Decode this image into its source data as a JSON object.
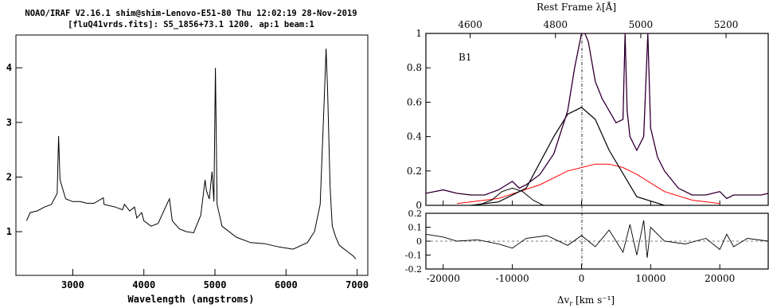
{
  "left_panel": {
    "header_line1": "NOAO/IRAF V2.16.1 shim@shim-Lenovo-E51-80 Thu 12:02:19 28-Nov-2019",
    "header_line2": "[fluQ41vrds.fits]: S5_1856+73.1 1200. ap:1 beam:1",
    "xlabel": "Wavelength (angstroms)"
  },
  "right_panel": {
    "top_axis_label": "Rest Frame λ[Å]",
    "xlabel_main": "Δv",
    "xlabel_sub": "r",
    "xlabel_units": " [km s⁻¹]",
    "sup_label": "⁻¹",
    "panel_label": "B1"
  },
  "colors": {
    "data": "#000000",
    "model": "#b000b0",
    "broad_component": "#ff0000",
    "narrow_lines": "#ffff00",
    "fe_template": "#00cc00",
    "continuum": "#ff9900",
    "gaussian_hb": "#000000"
  },
  "chart_data": [
    {
      "type": "line",
      "title": "",
      "xlabel": "Wavelength (angstroms)",
      "ylabel": "",
      "xlim": [
        2200,
        7150
      ],
      "ylim": [
        0.2,
        4.6
      ],
      "xticks": [
        3000,
        4000,
        5000,
        6000,
        7000
      ],
      "yticks": [
        1,
        2,
        3,
        4
      ],
      "series": [
        {
          "x": [
            2350,
            2400,
            2500,
            2600,
            2700,
            2780,
            2800,
            2820,
            2900,
            3000,
            3100,
            3200,
            3300,
            3430,
            3440,
            3500,
            3600,
            3700,
            3727,
            3800,
            3869,
            3900,
            3970,
            4000,
            4100,
            4200,
            4340,
            4360,
            4400,
            4500,
            4600,
            4700,
            4800,
            4861,
            4880,
            4920,
            4959,
            4985,
            5007,
            5030,
            5100,
            5300,
            5500,
            5700,
            5900,
            6100,
            6300,
            6400,
            6480,
            6540,
            6563,
            6585,
            6620,
            6650,
            6700,
            6750,
            6800,
            6850,
            6900,
            6950,
            6980
          ],
          "y": [
            1.2,
            1.35,
            1.38,
            1.45,
            1.5,
            1.7,
            2.75,
            1.95,
            1.6,
            1.55,
            1.55,
            1.52,
            1.52,
            1.62,
            1.5,
            1.48,
            1.45,
            1.4,
            1.5,
            1.38,
            1.45,
            1.25,
            1.35,
            1.2,
            1.1,
            1.15,
            1.55,
            1.6,
            1.2,
            1.05,
            1.0,
            0.98,
            1.3,
            1.95,
            1.75,
            1.6,
            2.1,
            1.55,
            4.0,
            1.5,
            1.1,
            0.9,
            0.8,
            0.78,
            0.72,
            0.68,
            0.8,
            1.0,
            1.5,
            3.5,
            4.35,
            3.6,
            1.8,
            1.1,
            0.9,
            0.75,
            0.7,
            0.65,
            0.6,
            0.55,
            0.5
          ]
        }
      ]
    },
    {
      "type": "line",
      "title": "",
      "panel_label": "B1",
      "xlabel": "Δvr [km s⁻¹]",
      "top_xlabel": "Rest Frame λ[Å]",
      "xlim": [
        -22500,
        27000
      ],
      "ylim": [
        0,
        1
      ],
      "xticks": [
        -20000,
        -10000,
        0,
        10000,
        20000
      ],
      "top_xticks": [
        4600,
        4800,
        5000,
        5200
      ],
      "yticks": [
        0,
        0.2,
        0.4,
        0.6,
        0.8,
        1
      ],
      "ytick_labels": [
        "0",
        "0.2",
        "0.4",
        "0.6",
        "0.8",
        "1"
      ],
      "series": [
        {
          "role": "data",
          "x": [
            -22500,
            -20000,
            -18000,
            -16000,
            -14000,
            -12000,
            -10000,
            -9000,
            -8000,
            -6000,
            -4000,
            -2000,
            -1000,
            0,
            500,
            1000,
            2000,
            3000,
            4000,
            5000,
            6000,
            6300,
            6600,
            7000,
            8000,
            9000,
            9600,
            10000,
            11000,
            12000,
            14000,
            16000,
            18000,
            20000,
            21000,
            22000,
            24000,
            26000,
            27000
          ],
          "y": [
            0.07,
            0.09,
            0.07,
            0.06,
            0.06,
            0.09,
            0.14,
            0.1,
            0.12,
            0.18,
            0.3,
            0.55,
            0.8,
            1.0,
            1.0,
            0.95,
            0.72,
            0.62,
            0.55,
            0.48,
            0.5,
            1.0,
            0.55,
            0.4,
            0.32,
            0.4,
            1.0,
            0.45,
            0.28,
            0.2,
            0.1,
            0.06,
            0.06,
            0.08,
            0.04,
            0.06,
            0.06,
            0.06,
            0.07
          ]
        },
        {
          "role": "gaussian_hb",
          "x": [
            -16000,
            -12000,
            -8000,
            -4000,
            -2000,
            0,
            2000,
            4000,
            8000,
            12000
          ],
          "y": [
            0.0,
            0.02,
            0.1,
            0.4,
            0.53,
            0.57,
            0.5,
            0.32,
            0.05,
            0.0
          ]
        },
        {
          "role": "gaussian_blue_bump",
          "x": [
            -15000,
            -13000,
            -11500,
            -10000,
            -8500,
            -7000,
            -5500
          ],
          "y": [
            0.0,
            0.03,
            0.08,
            0.1,
            0.08,
            0.03,
            0.0
          ]
        },
        {
          "role": "broad_component",
          "x": [
            -18000,
            -12000,
            -6000,
            -2000,
            0,
            2000,
            4000,
            6000,
            8000,
            12000,
            16000,
            20000
          ],
          "y": [
            0.01,
            0.04,
            0.12,
            0.2,
            0.22,
            0.24,
            0.24,
            0.22,
            0.18,
            0.08,
            0.03,
            0.01
          ]
        },
        {
          "role": "residual",
          "x": [
            -22500,
            -20000,
            -18000,
            -15000,
            -12000,
            -10000,
            -8000,
            -5000,
            -2000,
            0,
            2000,
            4000,
            6000,
            7000,
            8000,
            9000,
            9500,
            10000,
            12000,
            15000,
            18000,
            20000,
            21000,
            22000,
            24000,
            27000
          ],
          "y": [
            0.05,
            0.03,
            0.0,
            0.01,
            -0.02,
            -0.05,
            0.02,
            0.04,
            -0.03,
            0.04,
            -0.04,
            0.08,
            -0.08,
            0.12,
            -0.1,
            0.15,
            -0.12,
            0.1,
            0.0,
            -0.02,
            0.02,
            -0.06,
            0.05,
            -0.04,
            0.02,
            0.0
          ]
        }
      ],
      "residual_ylim": [
        -0.2,
        0.2
      ],
      "residual_yticks": [
        -0.2,
        -0.1,
        0,
        0.1,
        0.2
      ],
      "residual_ytick_labels": [
        "-0.2",
        "-0.1",
        "0",
        "0.1",
        "0.2"
      ]
    }
  ]
}
